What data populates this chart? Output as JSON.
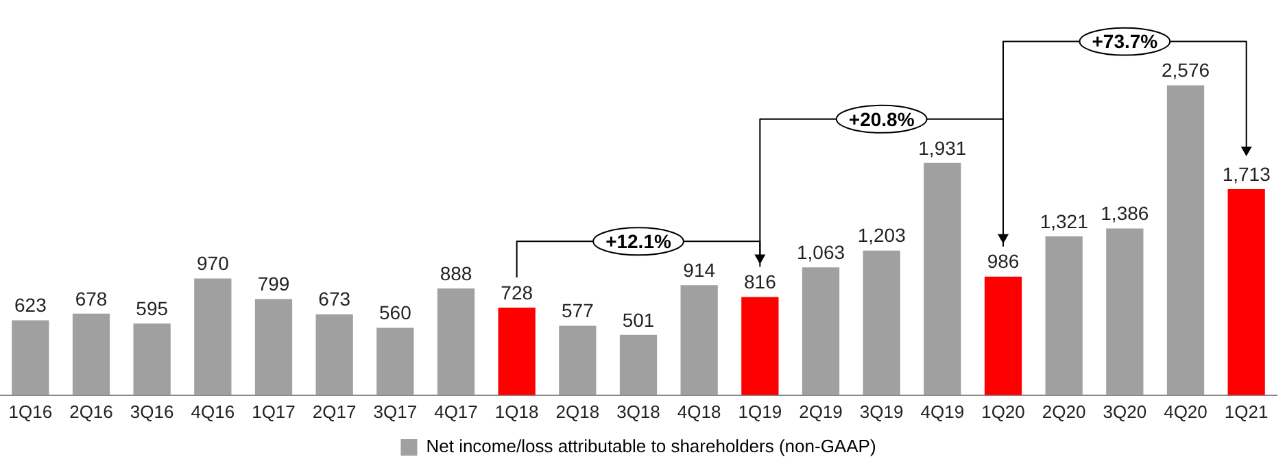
{
  "chart_data": {
    "type": "bar",
    "categories": [
      "1Q16",
      "2Q16",
      "3Q16",
      "4Q16",
      "1Q17",
      "2Q17",
      "3Q17",
      "4Q17",
      "1Q18",
      "2Q18",
      "3Q18",
      "4Q18",
      "1Q19",
      "2Q19",
      "3Q19",
      "4Q19",
      "1Q20",
      "2Q20",
      "3Q20",
      "4Q20",
      "1Q21"
    ],
    "series": [
      {
        "name": "Net income/loss attributable to shareholders (non-GAAP)",
        "color": "#a0a0a0",
        "colors": [
          "#a0a0a0",
          "#a0a0a0",
          "#a0a0a0",
          "#a0a0a0",
          "#a0a0a0",
          "#a0a0a0",
          "#a0a0a0",
          "#a0a0a0",
          "#ff0000",
          "#a0a0a0",
          "#a0a0a0",
          "#a0a0a0",
          "#ff0000",
          "#a0a0a0",
          "#a0a0a0",
          "#a0a0a0",
          "#ff0000",
          "#a0a0a0",
          "#a0a0a0",
          "#a0a0a0",
          "#ff0000"
        ],
        "values": [
          623,
          678,
          595,
          970,
          799,
          673,
          560,
          888,
          728,
          577,
          501,
          914,
          816,
          1063,
          1203,
          1931,
          986,
          1321,
          1386,
          2576,
          1713
        ],
        "value_labels": [
          "623",
          "678",
          "595",
          "970",
          "799",
          "673",
          "560",
          "888",
          "728",
          "577",
          "501",
          "914",
          "816",
          "1,063",
          "1,203",
          "1,931",
          "986",
          "1,321",
          "1,386",
          "2,576",
          "1,713"
        ]
      }
    ],
    "annotations": [
      "+12.1%",
      "+20.8%",
      "+73.7%"
    ],
    "legend": "bottom",
    "grid": false
  }
}
